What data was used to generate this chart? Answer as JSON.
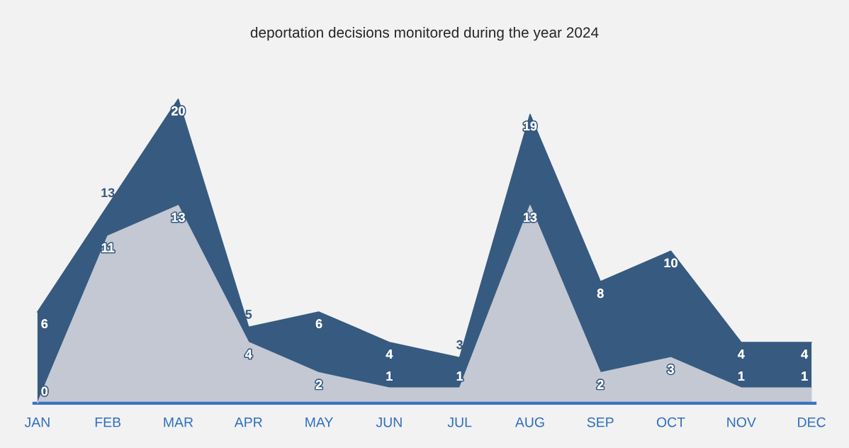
{
  "chart_data": {
    "type": "area",
    "title": "deportation decisions monitored during the year 2024",
    "categories": [
      "JAN",
      "FEB",
      "MAR",
      "APR",
      "MAY",
      "JUN",
      "JUL",
      "AUG",
      "SEP",
      "OCT",
      "NOV",
      "DEC"
    ],
    "series": [
      {
        "color": "#375a80",
        "values": [
          6,
          13,
          20,
          5,
          6,
          4,
          3,
          19,
          8,
          10,
          4,
          4
        ]
      },
      {
        "color": "#c3c8d2",
        "values": [
          0,
          11,
          13,
          4,
          2,
          1,
          1,
          13,
          2,
          3,
          1,
          1
        ]
      }
    ],
    "data_labels": true,
    "legend": false,
    "grid": false
  }
}
